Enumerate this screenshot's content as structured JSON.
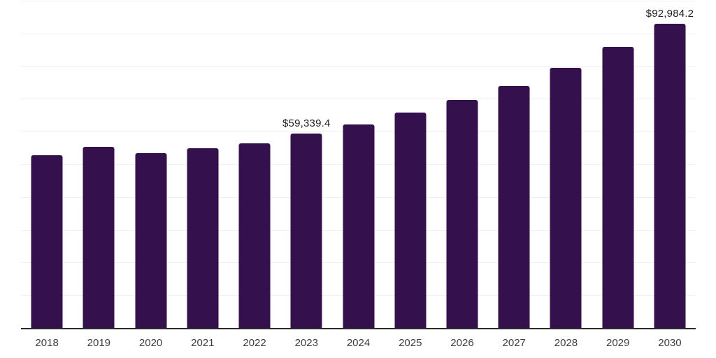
{
  "chart_data": {
    "type": "bar",
    "categories": [
      "2018",
      "2019",
      "2020",
      "2021",
      "2022",
      "2023",
      "2024",
      "2025",
      "2026",
      "2027",
      "2028",
      "2029",
      "2030"
    ],
    "values": [
      52800,
      55300,
      53400,
      55000,
      56500,
      59339.4,
      62200,
      65800,
      69700,
      73900,
      79500,
      85800,
      92984.2
    ],
    "data_labels": {
      "2023": "$59,339.4",
      "2030": "$92,984.2"
    },
    "title": "",
    "xlabel": "",
    "ylabel": "",
    "ylim": [
      0,
      100000
    ],
    "gridline_interval": 10000,
    "grid": "horizontal",
    "legend": "none"
  },
  "colors": {
    "bar": "#34114C",
    "gridline": "#f1f1f1",
    "axis_line": "#2b2b2b",
    "data_label": "#1f1f1f",
    "x_tick_label": "#3d3d3d",
    "background": "#ffffff"
  }
}
